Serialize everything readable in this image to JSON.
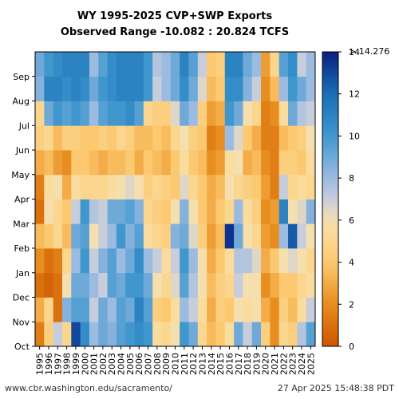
{
  "chart_data": {
    "type": "heatmap",
    "title": "WY 1995-2025 CVP+SWP Exports",
    "subtitle": "Observed Range -10.082 : 20.824 TCFS",
    "x_categories": [
      "1995",
      "1996",
      "1997",
      "1998",
      "1999",
      "2000",
      "2001",
      "2002",
      "2003",
      "2004",
      "2005",
      "2006",
      "2007",
      "2008",
      "2009",
      "2010",
      "2011",
      "2012",
      "2013",
      "2014",
      "2015",
      "2016",
      "2017",
      "2018",
      "2019",
      "2020",
      "2021",
      "2022",
      "2023",
      "2024",
      "2025"
    ],
    "y_categories": [
      "Oct",
      "Nov",
      "Dec",
      "Jan",
      "Feb",
      "Mar",
      "Apr",
      "May",
      "Jun",
      "Jul",
      "Aug",
      "Sep"
    ],
    "colorbar": {
      "ticks": [
        "0",
        "2",
        "4",
        "6",
        "8",
        "10",
        "12",
        "14"
      ],
      "range": [
        0,
        14
      ],
      "top_label": "> 14.276",
      "colormap": "RdYlBu (orange → beige → blue)"
    },
    "monthly_exports_tcfs_by_year": [
      [
        1.5,
        3.0,
        1.0,
        2.0,
        3.5,
        1.0,
        1.5,
        3.0,
        4.5,
        5.0,
        8.5,
        9.0
      ],
      [
        4.5,
        5.0,
        0.5,
        1.0,
        4.0,
        6.0,
        5.5,
        3.5,
        5.0,
        9.0,
        11.0,
        10.0
      ],
      [
        7.0,
        1.0,
        1.0,
        1.5,
        5.0,
        5.0,
        6.0,
        2.5,
        3.5,
        10.0,
        11.0,
        10.5
      ],
      [
        5.0,
        8.5,
        6.0,
        5.0,
        3.5,
        4.0,
        3.0,
        2.0,
        4.5,
        9.5,
        10.5,
        11.0
      ],
      [
        13.0,
        9.5,
        9.0,
        8.0,
        9.0,
        7.0,
        5.5,
        4.0,
        4.5,
        10.0,
        11.0,
        11.0
      ],
      [
        10.5,
        9.5,
        9.0,
        10.0,
        9.5,
        10.0,
        5.0,
        4.0,
        4.0,
        9.5,
        10.5,
        11.0
      ],
      [
        8.0,
        7.0,
        8.0,
        7.0,
        6.0,
        7.5,
        5.0,
        3.5,
        4.0,
        8.0,
        9.0,
        8.0
      ],
      [
        9.0,
        9.0,
        7.0,
        8.5,
        7.0,
        7.0,
        5.0,
        3.0,
        4.5,
        9.5,
        10.0,
        9.5
      ],
      [
        8.5,
        8.0,
        9.5,
        9.5,
        8.0,
        9.0,
        5.5,
        3.5,
        4.0,
        10.0,
        10.5,
        10.5
      ],
      [
        9.5,
        9.5,
        9.0,
        8.0,
        10.0,
        9.0,
        6.0,
        3.5,
        5.0,
        10.0,
        11.0,
        11.0
      ],
      [
        10.0,
        9.0,
        10.0,
        9.0,
        8.5,
        9.5,
        6.5,
        4.0,
        4.5,
        10.5,
        11.0,
        11.0
      ],
      [
        10.5,
        11.0,
        10.0,
        10.5,
        9.5,
        8.5,
        6.0,
        3.0,
        3.5,
        9.5,
        11.0,
        11.0
      ],
      [
        10.0,
        9.5,
        9.0,
        8.0,
        5.5,
        5.0,
        4.5,
        4.0,
        3.5,
        5.0,
        10.0,
        10.0
      ],
      [
        5.5,
        4.5,
        6.0,
        7.0,
        5.0,
        4.5,
        5.0,
        3.5,
        4.0,
        4.5,
        7.0,
        7.5
      ],
      [
        5.0,
        4.0,
        5.0,
        5.5,
        4.5,
        4.0,
        4.5,
        3.0,
        3.5,
        4.5,
        8.0,
        8.0
      ],
      [
        6.0,
        5.5,
        6.5,
        7.0,
        8.5,
        6.0,
        4.0,
        4.0,
        5.0,
        6.5,
        9.0,
        9.0
      ],
      [
        10.0,
        8.0,
        9.5,
        10.0,
        9.0,
        8.5,
        6.5,
        5.5,
        6.0,
        9.0,
        10.5,
        11.0
      ],
      [
        9.0,
        7.0,
        7.5,
        8.0,
        6.5,
        6.0,
        5.0,
        4.0,
        4.5,
        8.0,
        9.0,
        9.5
      ],
      [
        5.0,
        5.5,
        6.0,
        6.0,
        4.5,
        4.0,
        4.0,
        3.5,
        4.0,
        4.5,
        6.5,
        7.0
      ],
      [
        3.5,
        3.0,
        3.5,
        3.0,
        2.5,
        3.0,
        3.0,
        2.0,
        1.5,
        2.5,
        3.5,
        4.0
      ],
      [
        4.0,
        4.5,
        4.5,
        4.0,
        3.5,
        4.0,
        3.5,
        2.5,
        2.0,
        3.0,
        4.0,
        4.5
      ],
      [
        5.5,
        4.0,
        5.0,
        5.5,
        13.5,
        5.0,
        6.0,
        5.5,
        8.0,
        10.0,
        10.5,
        11.0
      ],
      [
        9.0,
        6.0,
        7.0,
        7.5,
        9.0,
        8.0,
        5.0,
        6.0,
        6.5,
        9.0,
        10.5,
        11.0
      ],
      [
        7.0,
        5.5,
        6.0,
        7.5,
        6.0,
        5.5,
        4.5,
        3.0,
        4.0,
        6.0,
        8.5,
        9.0
      ],
      [
        9.0,
        6.0,
        6.0,
        6.5,
        5.0,
        4.5,
        4.0,
        3.5,
        3.0,
        5.0,
        7.0,
        8.0
      ],
      [
        4.5,
        3.0,
        2.0,
        3.0,
        2.5,
        2.0,
        2.5,
        2.0,
        1.5,
        1.5,
        2.0,
        2.5
      ],
      [
        2.0,
        2.0,
        3.0,
        4.0,
        2.0,
        2.5,
        1.5,
        1.5,
        1.5,
        2.0,
        3.5,
        5.0
      ],
      [
        5.0,
        4.5,
        4.0,
        6.0,
        8.0,
        11.0,
        7.0,
        4.5,
        3.5,
        5.5,
        8.0,
        9.5
      ],
      [
        4.5,
        3.5,
        4.0,
        6.5,
        12.5,
        6.0,
        5.0,
        4.5,
        4.0,
        9.0,
        10.0,
        10.5
      ],
      [
        7.5,
        5.5,
        5.0,
        6.0,
        7.0,
        6.5,
        5.5,
        4.0,
        4.5,
        7.5,
        9.0,
        7.0
      ],
      [
        9.5,
        7.0,
        5.5,
        5.0,
        6.0,
        8.5,
        5.0,
        5.5,
        6.0,
        7.0,
        8.0,
        8.0
      ]
    ]
  },
  "footer": {
    "source": "www.cbr.washington.edu/sacramento/",
    "timestamp": "27 Apr 2025 15:48:38 PDT"
  }
}
